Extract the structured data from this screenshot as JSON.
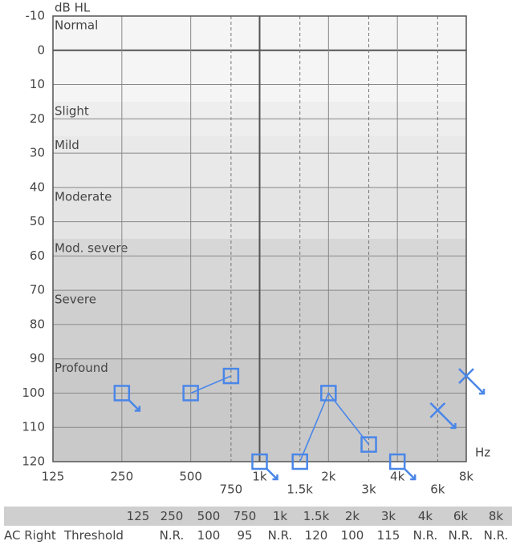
{
  "chart_data": {
    "type": "audiogram",
    "y_label": "dB HL",
    "x_label": "Hz",
    "x": [
      125,
      250,
      500,
      750,
      1000,
      1500,
      2000,
      3000,
      4000,
      6000,
      8000
    ],
    "xlim": [
      125,
      8000
    ],
    "log_x": true,
    "xticks": [
      125,
      250,
      500,
      {
        "value": 750,
        "label": "750"
      },
      {
        "value": 1000,
        "label": "1k"
      },
      {
        "value": 1500,
        "label": "1.5k"
      },
      {
        "value": 2000,
        "label": "2k"
      },
      {
        "value": 3000,
        "label": "3k"
      },
      {
        "value": 4000,
        "label": "4k"
      },
      {
        "value": 6000,
        "label": "6k"
      },
      {
        "value": 8000,
        "label": "8k"
      }
    ],
    "ylim": [
      -10,
      120
    ],
    "yticks": [
      -10,
      0,
      10,
      20,
      30,
      40,
      50,
      60,
      70,
      80,
      90,
      100,
      110,
      120
    ],
    "grid": true,
    "bands": [
      {
        "label": "Normal",
        "from": -10,
        "to": 15,
        "color": "#f5f5f5"
      },
      {
        "label": "Slight",
        "from": 15,
        "to": 25,
        "color": "#eeeeee"
      },
      {
        "label": "Mild",
        "from": 25,
        "to": 40,
        "color": "#e9e9e9"
      },
      {
        "label": "Moderate",
        "from": 40,
        "to": 55,
        "color": "#e4e4e4"
      },
      {
        "label": "Mod. severe",
        "from": 55,
        "to": 70,
        "color": "#d7d7d7"
      },
      {
        "label": "Severe",
        "from": 70,
        "to": 90,
        "color": "#cfcfcf"
      },
      {
        "label": "Profound",
        "from": 90,
        "to": 120,
        "color": "#c9c9c9"
      }
    ],
    "series": [
      {
        "marker": "square",
        "color": "#4a86e8",
        "values": [
          null,
          100,
          100,
          95,
          120,
          120,
          100,
          115,
          120,
          null,
          null
        ],
        "no_response": [
          false,
          true,
          false,
          false,
          true,
          false,
          false,
          false,
          true,
          false,
          false
        ]
      },
      {
        "marker": "cross",
        "color": "#4a86e8",
        "values": [
          null,
          null,
          null,
          null,
          null,
          null,
          null,
          null,
          null,
          105,
          95
        ],
        "no_response": [
          false,
          false,
          false,
          false,
          false,
          false,
          false,
          false,
          false,
          true,
          true
        ]
      }
    ]
  },
  "table": {
    "header": [
      "125",
      "250",
      "500",
      "750",
      "1k",
      "1.5k",
      "2k",
      "3k",
      "4k",
      "6k",
      "8k"
    ],
    "rows": [
      {
        "label": "AC Right",
        "sub": "Threshold",
        "cells": [
          null,
          "N.R.",
          "100",
          "95",
          "N.R.",
          "120",
          "100",
          "115",
          "N.R.",
          "N.R.",
          "N.R."
        ]
      }
    ]
  }
}
